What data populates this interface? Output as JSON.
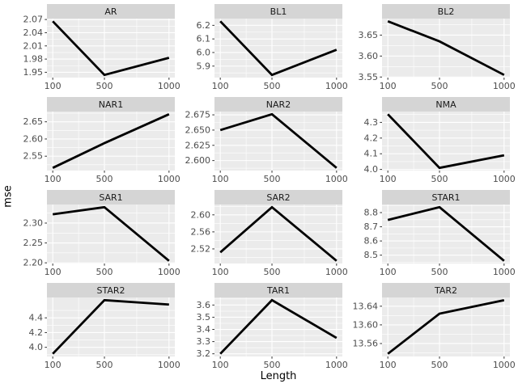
{
  "chart_data": {
    "type": "line",
    "layout": "facet_wrap 4 rows x 3 cols, free scales",
    "title": "",
    "xlabel": "Length",
    "ylabel": "mse",
    "x": [
      100,
      500,
      1000
    ],
    "xtick_labels": [
      "100",
      "500",
      "1000"
    ],
    "x_minor_breaks": [
      300,
      750
    ],
    "xlim_expansion": 0.05,
    "grid": "on",
    "legend": "none",
    "facets": [
      {
        "name": "AR",
        "ytick_labels": [
          "1.95",
          "1.98",
          "2.01",
          "2.04",
          "2.07"
        ],
        "values": [
          2.066,
          1.944,
          1.983
        ]
      },
      {
        "name": "BL1",
        "ytick_labels": [
          "5.9",
          "6.0",
          "6.1",
          "6.2"
        ],
        "values": [
          6.23,
          5.835,
          6.02
        ]
      },
      {
        "name": "BL2",
        "ytick_labels": [
          "3.55",
          "3.60",
          "3.65"
        ],
        "values": [
          3.683,
          3.635,
          3.555
        ]
      },
      {
        "name": "NAR1",
        "ytick_labels": [
          "2.55",
          "2.60",
          "2.65"
        ],
        "values": [
          2.516,
          2.588,
          2.672
        ]
      },
      {
        "name": "NAR2",
        "ytick_labels": [
          "2.600",
          "2.625",
          "2.650",
          "2.675"
        ],
        "values": [
          2.65,
          2.676,
          2.588
        ]
      },
      {
        "name": "NMA",
        "ytick_labels": [
          "4.0",
          "4.1",
          "4.2",
          "4.3"
        ],
        "values": [
          4.352,
          4.01,
          4.09
        ]
      },
      {
        "name": "SAR1",
        "ytick_labels": [
          "2.20",
          "2.25",
          "2.30"
        ],
        "values": [
          2.322,
          2.34,
          2.205
        ]
      },
      {
        "name": "SAR2",
        "ytick_labels": [
          "2.52",
          "2.56",
          "2.60"
        ],
        "values": [
          2.512,
          2.618,
          2.492
        ]
      },
      {
        "name": "STAR1",
        "ytick_labels": [
          "8.5",
          "8.6",
          "8.7",
          "8.8"
        ],
        "values": [
          8.748,
          8.838,
          8.46
        ]
      },
      {
        "name": "STAR2",
        "ytick_labels": [
          "4.0",
          "4.2",
          "4.4"
        ],
        "values": [
          3.912,
          4.64,
          4.58
        ]
      },
      {
        "name": "TAR1",
        "ytick_labels": [
          "3.2",
          "3.3",
          "3.4",
          "3.5",
          "3.6"
        ],
        "values": [
          3.2,
          3.64,
          3.33
        ]
      },
      {
        "name": "TAR2",
        "ytick_labels": [
          "13.56",
          "13.60",
          "13.64"
        ],
        "values": [
          13.538,
          13.624,
          13.653
        ]
      }
    ],
    "colors": {
      "panel_background": "#ebebeb",
      "strip_background": "#d5d5d5",
      "grid_line": "#ffffff",
      "series_line": "#000000",
      "tick_text": "#4d4d4d",
      "tick_mark": "#333333",
      "page_background": "#ffffff"
    }
  }
}
